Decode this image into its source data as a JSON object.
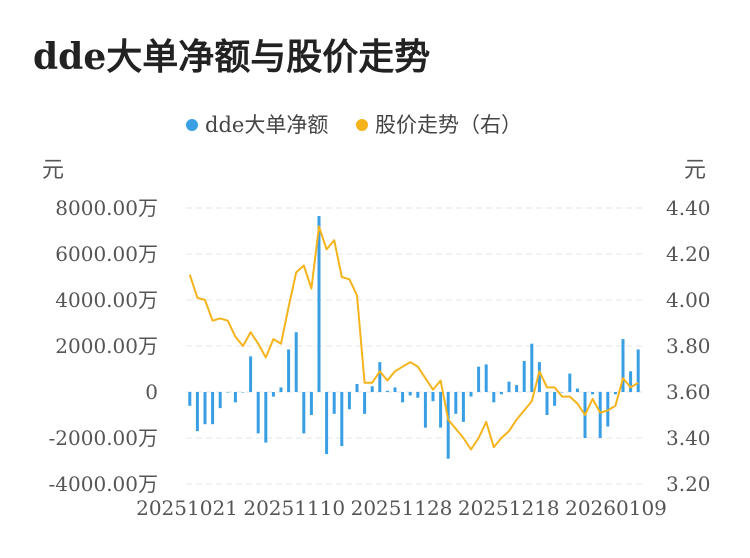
{
  "chart_data": {
    "type": "bar+line",
    "title": "dde大单净额与股价走势",
    "legend": [
      {
        "name": "dde大单净额",
        "color": "#3a9ee4"
      },
      {
        "name": "股价走势（右）",
        "color": "#f5b31c"
      }
    ],
    "left_axis": {
      "unit": "元",
      "ticks": [
        "8000.00万",
        "6000.00万",
        "4000.00万",
        "2000.00万",
        "0",
        "-2000.00万",
        "-4000.00万"
      ],
      "range": [
        -4000,
        8000
      ]
    },
    "right_axis": {
      "unit": "元",
      "ticks": [
        "4.40",
        "4.20",
        "4.00",
        "3.80",
        "3.60",
        "3.40",
        "3.20"
      ],
      "range": [
        3.2,
        4.4
      ]
    },
    "x_ticks": [
      "20251021",
      "20251110",
      "20251128",
      "20251218",
      "20260109"
    ],
    "series": [
      {
        "name": "dde大单净额",
        "kind": "bar",
        "unit": "万元",
        "values": [
          -600,
          -1700,
          -1400,
          -1400,
          -700,
          0,
          -450,
          0,
          1550,
          -1800,
          -2200,
          -200,
          200,
          1850,
          2600,
          -1800,
          -1000,
          7650,
          -2700,
          -950,
          -2350,
          -750,
          350,
          -950,
          250,
          1300,
          50,
          200,
          -450,
          -150,
          -250,
          -1550,
          -400,
          -1550,
          -2900,
          -950,
          -1300,
          -200,
          1100,
          1200,
          -450,
          -100,
          450,
          300,
          1350,
          2100,
          1300,
          -1000,
          -600,
          0,
          800,
          150,
          -2000,
          -100,
          -2000,
          -1500,
          -100,
          2300,
          900,
          1850
        ]
      },
      {
        "name": "股价走势（右）",
        "kind": "line",
        "unit": "元",
        "values": [
          4.11,
          4.01,
          4.0,
          3.91,
          3.92,
          3.91,
          3.84,
          3.8,
          3.86,
          3.81,
          3.75,
          3.83,
          3.81,
          3.97,
          4.12,
          4.15,
          4.05,
          4.32,
          4.22,
          4.26,
          4.1,
          4.09,
          4.02,
          3.64,
          3.64,
          3.69,
          3.65,
          3.69,
          3.71,
          3.73,
          3.71,
          3.66,
          3.61,
          3.65,
          3.48,
          3.44,
          3.4,
          3.35,
          3.4,
          3.47,
          3.36,
          3.4,
          3.43,
          3.48,
          3.52,
          3.56,
          3.69,
          3.62,
          3.62,
          3.58,
          3.58,
          3.55,
          3.5,
          3.57,
          3.51,
          3.52,
          3.54,
          3.66,
          3.62,
          3.64
        ]
      }
    ]
  }
}
